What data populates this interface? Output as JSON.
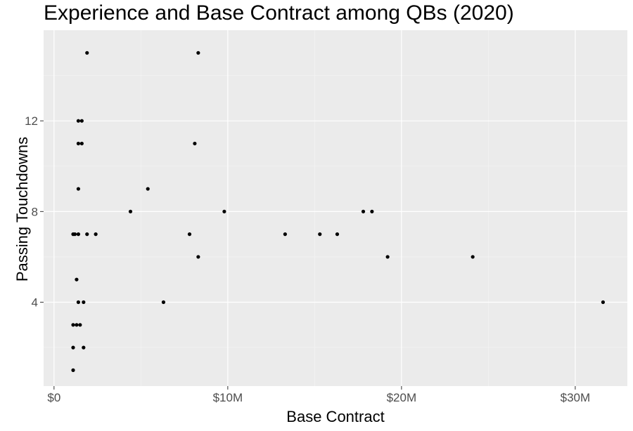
{
  "chart_data": {
    "type": "scatter",
    "title": "Experience and Base Contract among QBs (2020)",
    "xlabel": "Base Contract",
    "ylabel": "Passing Touchdowns",
    "xlim": [
      -0.6,
      33
    ],
    "ylim": [
      0.3,
      16
    ],
    "x_ticks": [
      0,
      10,
      20,
      30
    ],
    "x_tick_labels": [
      "$0",
      "$10M",
      "$20M",
      "$30M"
    ],
    "y_ticks": [
      4,
      8,
      12
    ],
    "y_tick_labels": [
      "4",
      "8",
      "12"
    ],
    "grid": true,
    "legend": "none",
    "x_unit": "$M",
    "points": [
      {
        "x": 1.9,
        "y": 15
      },
      {
        "x": 8.3,
        "y": 15
      },
      {
        "x": 1.4,
        "y": 12
      },
      {
        "x": 1.6,
        "y": 12
      },
      {
        "x": 1.4,
        "y": 11
      },
      {
        "x": 1.6,
        "y": 11
      },
      {
        "x": 8.1,
        "y": 11
      },
      {
        "x": 1.4,
        "y": 9
      },
      {
        "x": 5.4,
        "y": 9
      },
      {
        "x": 4.4,
        "y": 8
      },
      {
        "x": 9.8,
        "y": 8
      },
      {
        "x": 17.8,
        "y": 8
      },
      {
        "x": 18.3,
        "y": 8
      },
      {
        "x": 1.1,
        "y": 7
      },
      {
        "x": 1.2,
        "y": 7
      },
      {
        "x": 1.4,
        "y": 7
      },
      {
        "x": 1.9,
        "y": 7
      },
      {
        "x": 2.4,
        "y": 7
      },
      {
        "x": 7.8,
        "y": 7
      },
      {
        "x": 13.3,
        "y": 7
      },
      {
        "x": 15.3,
        "y": 7
      },
      {
        "x": 16.3,
        "y": 7
      },
      {
        "x": 8.3,
        "y": 6
      },
      {
        "x": 19.2,
        "y": 6
      },
      {
        "x": 24.1,
        "y": 6
      },
      {
        "x": 1.3,
        "y": 5
      },
      {
        "x": 1.4,
        "y": 4
      },
      {
        "x": 1.7,
        "y": 4
      },
      {
        "x": 6.3,
        "y": 4
      },
      {
        "x": 31.6,
        "y": 4
      },
      {
        "x": 1.1,
        "y": 3
      },
      {
        "x": 1.3,
        "y": 3
      },
      {
        "x": 1.5,
        "y": 3
      },
      {
        "x": 1.1,
        "y": 2
      },
      {
        "x": 1.7,
        "y": 2
      },
      {
        "x": 1.1,
        "y": 1
      }
    ],
    "colors": {
      "panel": "#ebebeb",
      "grid_major": "#ffffff",
      "grid_minor": "#f5f5f5",
      "point": "#000000",
      "tick_text": "#4d4d4d",
      "tick_mark": "#333333"
    }
  }
}
